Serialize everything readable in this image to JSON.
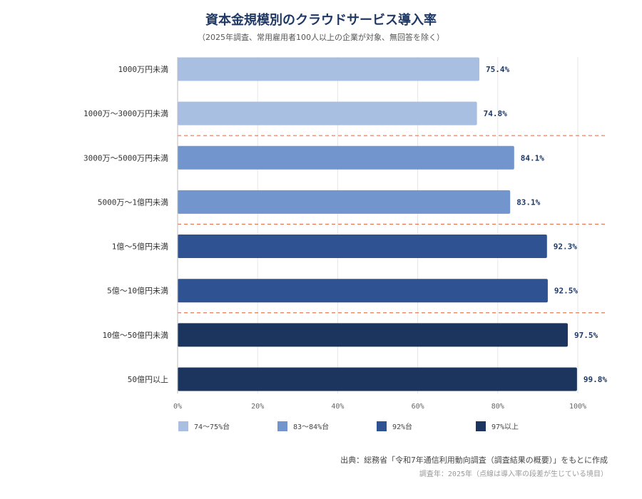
{
  "chart_data": {
    "type": "bar",
    "orientation": "horizontal",
    "title": "資本金規模別のクラウドサービス導入率",
    "subtitle": "（2025年調査、常用雇用者100人以上の企業が対象、無回答を除く）",
    "categories": [
      "1000万円未満",
      "1000万～3000万円未満",
      "3000万～5000万円未満",
      "5000万～1億円未満",
      "1億～5億円未満",
      "5億～10億円未満",
      "10億～50億円未満",
      "50億円以上"
    ],
    "values": [
      75.4,
      74.8,
      84.1,
      83.1,
      92.3,
      92.5,
      97.5,
      99.8
    ],
    "value_labels": [
      "75.4%",
      "74.8%",
      "84.1%",
      "83.1%",
      "92.3%",
      "92.5%",
      "97.5%",
      "99.8%"
    ],
    "groups": [
      0,
      0,
      1,
      1,
      2,
      2,
      3,
      3
    ],
    "group_colors": [
      "#a9bfe2",
      "#7195cc",
      "#2f5293",
      "#1b355f"
    ],
    "xlim": [
      0,
      100
    ],
    "x_ticks": [
      0,
      20,
      40,
      60,
      80,
      100
    ],
    "x_tick_labels": [
      "0%",
      "20%",
      "40%",
      "60%",
      "80%",
      "100%"
    ],
    "grid": true,
    "separator_color": "#e07b5a",
    "legend": {
      "placement": "bottom",
      "entries": [
        {
          "label": "74～75%台",
          "color": "#a9bfe2"
        },
        {
          "label": "83～84%台",
          "color": "#7195cc"
        },
        {
          "label": "92%台",
          "color": "#2f5293"
        },
        {
          "label": "97%以上",
          "color": "#1b355f"
        }
      ]
    }
  },
  "footer": {
    "source": "出典：総務省「令和7年通信利用動向調査（調査結果の概要）」をもとに作成",
    "note": "調査年：2025年（点線は導入率の段差が生じている境目）"
  }
}
